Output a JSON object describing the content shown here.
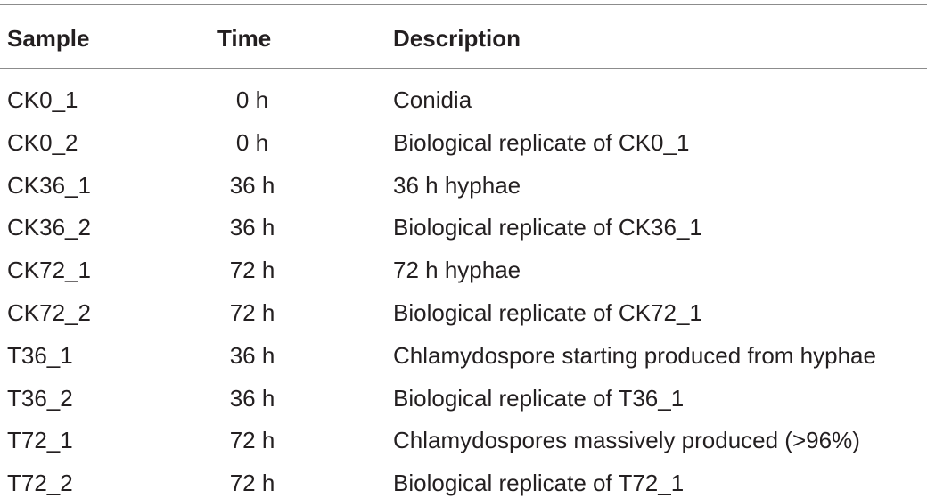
{
  "table": {
    "headers": {
      "sample": "Sample",
      "time": "Time",
      "description": "Description"
    },
    "rows": [
      {
        "sample": "CK0_1",
        "time": "0 h",
        "description": "Conidia"
      },
      {
        "sample": "CK0_2",
        "time": "0 h",
        "description": "Biological replicate of CK0_1"
      },
      {
        "sample": "CK36_1",
        "time": "36 h",
        "description": "36 h hyphae"
      },
      {
        "sample": "CK36_2",
        "time": "36 h",
        "description": "Biological replicate of CK36_1"
      },
      {
        "sample": "CK72_1",
        "time": "72 h",
        "description": "72 h hyphae"
      },
      {
        "sample": "CK72_2",
        "time": "72 h",
        "description": "Biological replicate of CK72_1"
      },
      {
        "sample": "T36_1",
        "time": "36 h",
        "description": "Chlamydospore starting produced from hyphae"
      },
      {
        "sample": "T36_2",
        "time": "36 h",
        "description": "Biological replicate of T36_1"
      },
      {
        "sample": "T72_1",
        "time": "72 h",
        "description": "Chlamydospores massively produced (>96%)"
      },
      {
        "sample": "T72_2",
        "time": "72 h",
        "description": "Biological replicate of T72_1"
      }
    ]
  }
}
